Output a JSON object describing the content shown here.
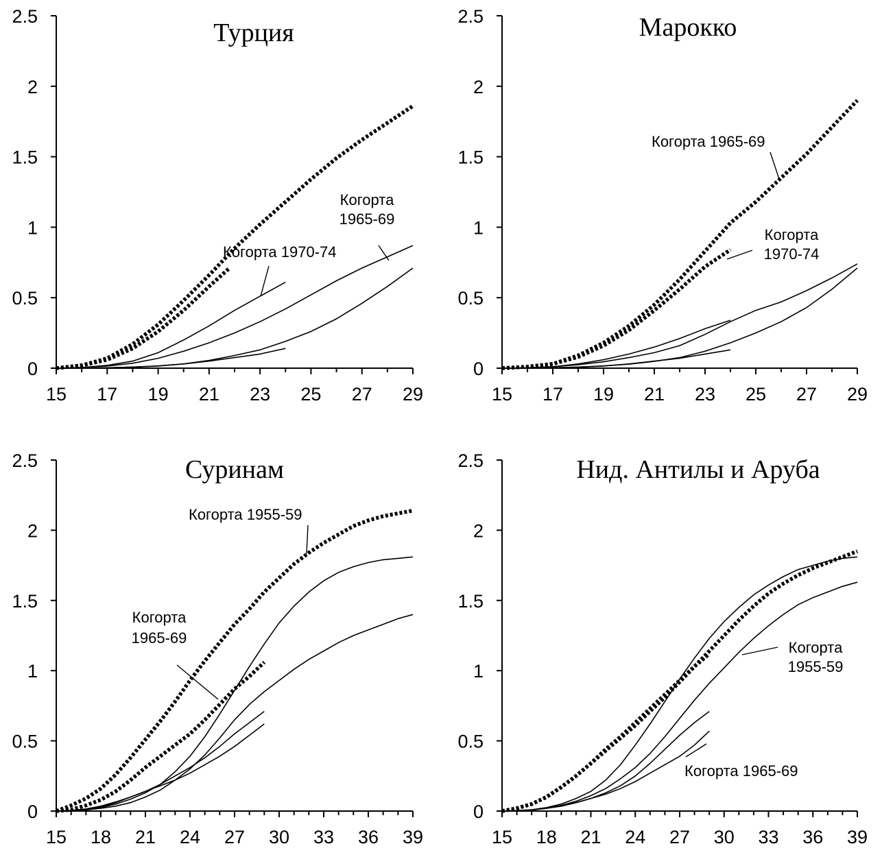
{
  "chart_data": [
    {
      "type": "line",
      "title": "Турция",
      "xlim": [
        15,
        29
      ],
      "ylim": [
        0,
        2.5
      ],
      "x_ticks": [
        15,
        17,
        19,
        21,
        23,
        25,
        27,
        29
      ],
      "y_ticks": [
        0,
        0.5,
        1,
        1.5,
        2,
        2.5
      ],
      "y_tick_labels": [
        "0",
        "0.5",
        "1",
        "1.5",
        "2",
        "2.5"
      ],
      "grid": false,
      "series": [
        {
          "style": "dotted",
          "x": [
            15,
            16,
            17,
            18,
            19,
            20,
            21,
            22,
            23,
            24,
            25,
            26,
            27,
            28,
            29
          ],
          "y": [
            0,
            0.02,
            0.07,
            0.17,
            0.31,
            0.48,
            0.66,
            0.85,
            1.02,
            1.18,
            1.34,
            1.49,
            1.62,
            1.74,
            1.86
          ]
        },
        {
          "style": "dotted",
          "x": [
            15,
            16,
            17,
            18,
            19,
            20,
            21,
            21.8
          ],
          "y": [
            0,
            0.02,
            0.06,
            0.14,
            0.26,
            0.41,
            0.58,
            0.71
          ]
        },
        {
          "style": "solid",
          "x": [
            15,
            16,
            17,
            18,
            19,
            20,
            21,
            22,
            23,
            24
          ],
          "y": [
            0,
            0.005,
            0.02,
            0.05,
            0.11,
            0.2,
            0.3,
            0.41,
            0.51,
            0.61
          ]
        },
        {
          "style": "solid",
          "x": [
            15,
            16,
            17,
            18,
            19,
            20,
            21,
            22,
            23,
            24,
            25,
            26,
            27,
            28,
            29
          ],
          "y": [
            0,
            0.005,
            0.015,
            0.035,
            0.07,
            0.12,
            0.18,
            0.25,
            0.33,
            0.42,
            0.52,
            0.62,
            0.71,
            0.79,
            0.87
          ]
        },
        {
          "style": "solid",
          "x": [
            15,
            16,
            17,
            18,
            19,
            20,
            21,
            22,
            23,
            24
          ],
          "y": [
            0,
            0,
            0.003,
            0.008,
            0.015,
            0.03,
            0.05,
            0.075,
            0.1,
            0.14
          ]
        },
        {
          "style": "solid",
          "x": [
            15,
            16,
            17,
            18,
            19,
            20,
            21,
            22,
            23,
            24,
            25,
            26,
            27,
            28,
            29
          ],
          "y": [
            0,
            0,
            0.003,
            0.008,
            0.016,
            0.03,
            0.055,
            0.09,
            0.13,
            0.19,
            0.26,
            0.35,
            0.46,
            0.58,
            0.71
          ]
        }
      ],
      "annotations": [
        {
          "lines": [
            "Когорта",
            "1965-69"
          ]
        },
        {
          "lines": [
            "Когорта 1970-74"
          ]
        }
      ]
    },
    {
      "type": "line",
      "title": "Марокко",
      "xlim": [
        15,
        29
      ],
      "ylim": [
        0,
        2.5
      ],
      "x_ticks": [
        15,
        17,
        19,
        21,
        23,
        25,
        27,
        29
      ],
      "y_ticks": [
        0,
        0.5,
        1,
        1.5,
        2,
        2.5
      ],
      "y_tick_labels": [
        "0",
        "0.5",
        "1",
        "1.5",
        "2",
        "2.5"
      ],
      "grid": false,
      "series": [
        {
          "style": "dotted",
          "x": [
            15,
            16,
            17,
            18,
            19,
            20,
            21,
            22,
            23,
            24,
            25,
            26,
            27,
            28,
            29
          ],
          "y": [
            0,
            0.01,
            0.03,
            0.09,
            0.18,
            0.3,
            0.45,
            0.63,
            0.83,
            1.03,
            1.18,
            1.35,
            1.52,
            1.71,
            1.9
          ]
        },
        {
          "style": "dotted",
          "x": [
            15,
            16,
            17,
            18,
            19,
            20,
            21,
            22,
            23,
            24
          ],
          "y": [
            0,
            0.01,
            0.03,
            0.08,
            0.16,
            0.27,
            0.41,
            0.56,
            0.72,
            0.84
          ]
        },
        {
          "style": "solid",
          "x": [
            15,
            16,
            17,
            18,
            19,
            20,
            21,
            22,
            23,
            24
          ],
          "y": [
            0,
            0.003,
            0.01,
            0.03,
            0.06,
            0.1,
            0.15,
            0.21,
            0.28,
            0.34
          ]
        },
        {
          "style": "solid",
          "x": [
            15,
            16,
            17,
            18,
            19,
            20,
            21,
            22,
            23,
            24,
            25,
            26,
            27,
            28,
            29
          ],
          "y": [
            0,
            0.003,
            0.01,
            0.025,
            0.045,
            0.075,
            0.11,
            0.16,
            0.24,
            0.33,
            0.41,
            0.47,
            0.55,
            0.64,
            0.74
          ]
        },
        {
          "style": "solid",
          "x": [
            15,
            16,
            17,
            18,
            19,
            20,
            21,
            22,
            23,
            24
          ],
          "y": [
            0,
            0,
            0.003,
            0.008,
            0.015,
            0.03,
            0.05,
            0.07,
            0.1,
            0.13
          ]
        },
        {
          "style": "solid",
          "x": [
            15,
            16,
            17,
            18,
            19,
            20,
            21,
            22,
            23,
            24,
            25,
            26,
            27,
            28,
            29
          ],
          "y": [
            0,
            0,
            0.003,
            0.008,
            0.016,
            0.028,
            0.048,
            0.075,
            0.12,
            0.18,
            0.25,
            0.33,
            0.43,
            0.56,
            0.71
          ]
        }
      ],
      "annotations": [
        {
          "lines": [
            "Когорта 1965-69"
          ]
        },
        {
          "lines": [
            "Когорта",
            "1970-74"
          ]
        }
      ]
    },
    {
      "type": "line",
      "title": "Суринам",
      "xlim": [
        15,
        39
      ],
      "ylim": [
        0,
        2.5
      ],
      "x_ticks": [
        15,
        18,
        21,
        24,
        27,
        30,
        33,
        36,
        39
      ],
      "y_ticks": [
        0,
        0.5,
        1,
        1.5,
        2,
        2.5
      ],
      "y_tick_labels": [
        "0",
        "0.5",
        "1",
        "1.5",
        "2",
        "2.5"
      ],
      "grid": false,
      "series": [
        {
          "style": "dotted",
          "x": [
            15,
            16,
            17,
            18,
            19,
            20,
            21,
            22,
            23,
            24,
            25,
            26,
            27,
            28,
            29,
            30,
            31,
            32,
            33,
            34,
            35,
            36,
            37,
            38,
            39
          ],
          "y": [
            0,
            0.04,
            0.09,
            0.16,
            0.26,
            0.38,
            0.51,
            0.64,
            0.78,
            0.93,
            1.07,
            1.2,
            1.33,
            1.44,
            1.56,
            1.66,
            1.76,
            1.84,
            1.91,
            1.97,
            2.03,
            2.07,
            2.1,
            2.12,
            2.14
          ]
        },
        {
          "style": "dotted",
          "x": [
            15,
            16,
            17,
            18,
            19,
            20,
            21,
            22,
            23,
            24,
            25,
            26,
            27,
            28,
            29
          ],
          "y": [
            0,
            0.01,
            0.04,
            0.08,
            0.14,
            0.22,
            0.31,
            0.39,
            0.47,
            0.55,
            0.65,
            0.76,
            0.87,
            0.96,
            1.06
          ]
        },
        {
          "style": "solid",
          "x": [
            15,
            16,
            17,
            18,
            19,
            20,
            21,
            22,
            23,
            24,
            25,
            26,
            27,
            28,
            29,
            30,
            31,
            32,
            33,
            34,
            35,
            36,
            37,
            38,
            39
          ],
          "y": [
            0,
            0.003,
            0.01,
            0.025,
            0.05,
            0.085,
            0.13,
            0.19,
            0.28,
            0.39,
            0.53,
            0.69,
            0.86,
            1.03,
            1.19,
            1.34,
            1.46,
            1.56,
            1.64,
            1.7,
            1.74,
            1.77,
            1.79,
            1.8,
            1.81
          ]
        },
        {
          "style": "solid",
          "x": [
            15,
            16,
            17,
            18,
            19,
            20,
            21,
            22,
            23,
            24,
            25,
            26,
            27,
            28,
            29,
            30,
            31,
            32,
            33,
            34,
            35,
            36,
            37,
            38,
            39
          ],
          "y": [
            0,
            0.003,
            0.008,
            0.02,
            0.035,
            0.06,
            0.1,
            0.15,
            0.22,
            0.3,
            0.4,
            0.52,
            0.65,
            0.76,
            0.85,
            0.93,
            1.01,
            1.08,
            1.14,
            1.2,
            1.25,
            1.29,
            1.33,
            1.37,
            1.4
          ]
        },
        {
          "style": "solid",
          "x": [
            15,
            16,
            17,
            18,
            19,
            20,
            21,
            22,
            23,
            24,
            25,
            26,
            27,
            28,
            29
          ],
          "y": [
            0,
            0.005,
            0.015,
            0.035,
            0.065,
            0.1,
            0.14,
            0.19,
            0.25,
            0.31,
            0.38,
            0.46,
            0.55,
            0.63,
            0.71
          ]
        },
        {
          "style": "solid",
          "x": [
            15,
            16,
            17,
            18,
            19,
            20,
            21,
            22,
            23,
            24,
            25,
            26,
            27,
            28,
            29
          ],
          "y": [
            0,
            0.005,
            0.012,
            0.03,
            0.06,
            0.1,
            0.14,
            0.18,
            0.22,
            0.27,
            0.33,
            0.39,
            0.46,
            0.54,
            0.62
          ]
        }
      ],
      "annotations": [
        {
          "lines": [
            "Когорта 1955-59"
          ]
        },
        {
          "lines": [
            "Когорта",
            "1965-69"
          ]
        }
      ]
    },
    {
      "type": "line",
      "title": "Нид. Антилы и Аруба",
      "xlim": [
        15,
        39
      ],
      "ylim": [
        0,
        2.5
      ],
      "x_ticks": [
        15,
        18,
        21,
        24,
        27,
        30,
        33,
        36,
        39
      ],
      "y_ticks": [
        0,
        0.5,
        1,
        1.5,
        2,
        2.5
      ],
      "y_tick_labels": [
        "0",
        "0.5",
        "1",
        "1.5",
        "2",
        "2.5"
      ],
      "grid": false,
      "series": [
        {
          "style": "dotted",
          "x": [
            15,
            16,
            17,
            18,
            19,
            20,
            21,
            22,
            23,
            24,
            25,
            26,
            27,
            28,
            29,
            30,
            31,
            32,
            33,
            34,
            35,
            36,
            37,
            38,
            39
          ],
          "y": [
            0,
            0.02,
            0.05,
            0.1,
            0.17,
            0.25,
            0.34,
            0.43,
            0.52,
            0.61,
            0.71,
            0.81,
            0.92,
            1.03,
            1.14,
            1.25,
            1.36,
            1.46,
            1.55,
            1.62,
            1.68,
            1.73,
            1.77,
            1.81,
            1.85
          ]
        },
        {
          "style": "dotted",
          "x": [
            15,
            16,
            17,
            18,
            19,
            20,
            21,
            22,
            23,
            24,
            25,
            26,
            27,
            28,
            29
          ],
          "y": [
            0,
            0.02,
            0.05,
            0.1,
            0.17,
            0.25,
            0.34,
            0.44,
            0.53,
            0.63,
            0.73,
            0.83,
            0.93,
            1.03,
            1.12
          ]
        },
        {
          "style": "solid",
          "x": [
            15,
            16,
            17,
            18,
            19,
            20,
            21,
            22,
            23,
            24,
            25,
            26,
            27,
            28,
            29,
            30,
            31,
            32,
            33,
            34,
            35,
            36,
            37,
            38,
            39
          ],
          "y": [
            0,
            0.003,
            0.01,
            0.025,
            0.05,
            0.09,
            0.14,
            0.22,
            0.33,
            0.47,
            0.62,
            0.78,
            0.94,
            1.09,
            1.23,
            1.35,
            1.45,
            1.54,
            1.61,
            1.67,
            1.72,
            1.75,
            1.78,
            1.8,
            1.81
          ]
        },
        {
          "style": "solid",
          "x": [
            15,
            16,
            17,
            18,
            19,
            20,
            21,
            22,
            23,
            24,
            25,
            26,
            27,
            28,
            29,
            30,
            31,
            32,
            33,
            34,
            35,
            36,
            37,
            38,
            39
          ],
          "y": [
            0,
            0.003,
            0.008,
            0.02,
            0.04,
            0.07,
            0.11,
            0.16,
            0.23,
            0.31,
            0.41,
            0.53,
            0.66,
            0.79,
            0.91,
            1.02,
            1.13,
            1.23,
            1.32,
            1.4,
            1.47,
            1.52,
            1.56,
            1.6,
            1.63
          ]
        },
        {
          "style": "solid",
          "x": [
            15,
            16,
            17,
            18,
            19,
            20,
            21,
            22,
            23,
            24,
            25,
            26,
            27,
            28,
            29
          ],
          "y": [
            0,
            0.003,
            0.008,
            0.02,
            0.035,
            0.06,
            0.09,
            0.13,
            0.18,
            0.25,
            0.34,
            0.44,
            0.54,
            0.63,
            0.71
          ]
        },
        {
          "style": "solid",
          "x": [
            15,
            16,
            17,
            18,
            19,
            20,
            21,
            22,
            23,
            24,
            25,
            26,
            27,
            28,
            29
          ],
          "y": [
            0,
            0.003,
            0.008,
            0.02,
            0.035,
            0.06,
            0.09,
            0.12,
            0.16,
            0.21,
            0.27,
            0.33,
            0.39,
            0.47,
            0.57
          ]
        }
      ],
      "annotations": [
        {
          "lines": [
            "Когорта",
            "1955-59"
          ]
        },
        {
          "lines": [
            "Когорта 1965-69"
          ]
        }
      ]
    }
  ]
}
